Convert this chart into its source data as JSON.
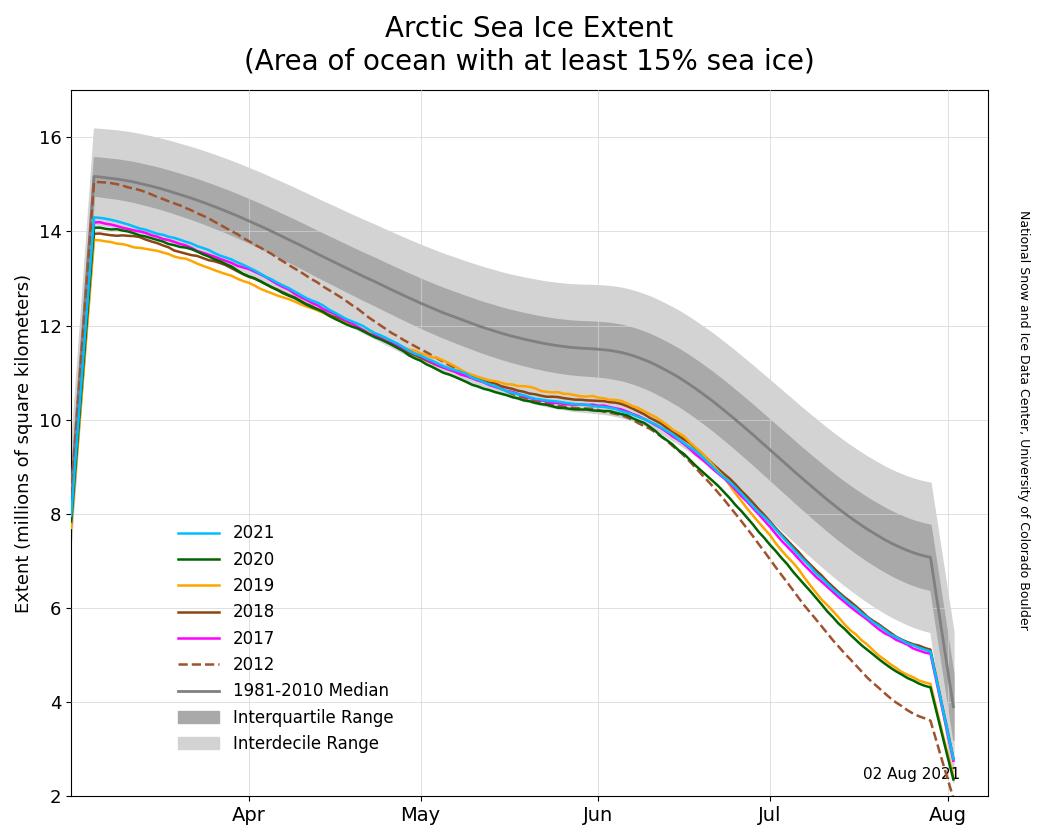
{
  "title": "Arctic Sea Ice Extent\n(Area of ocean with at least 15% sea ice)",
  "ylabel": "Extent (millions of square kilometers)",
  "date_label": "02 Aug 2021",
  "watermark": "National Snow and Ice Data Center, University of Colorado Boulder",
  "ylim": [
    2,
    17
  ],
  "yticks": [
    2,
    4,
    6,
    8,
    10,
    12,
    14,
    16
  ],
  "colors": {
    "2021": "#00BFFF",
    "2020": "#006400",
    "2019": "#FFA500",
    "2018": "#8B4513",
    "2017": "#FF00FF",
    "2012": "#A0522D",
    "median": "#808080",
    "iqr": "#A9A9A9",
    "idr": "#D3D3D3"
  }
}
